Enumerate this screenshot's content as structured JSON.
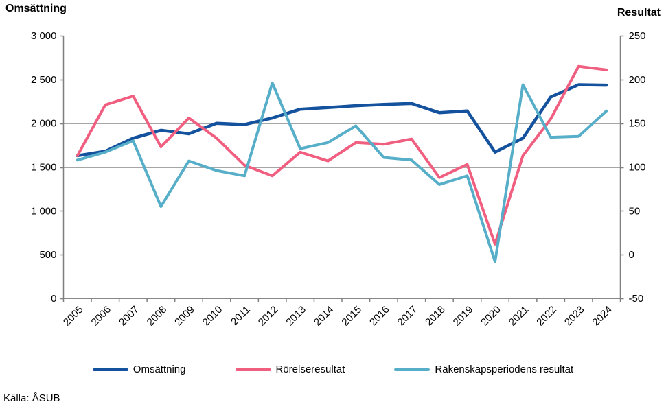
{
  "source": "Källa: ÅSUB",
  "chart_data": {
    "type": "line",
    "categories": [
      "2005",
      "2006",
      "2007",
      "2008",
      "2009",
      "2010",
      "2011",
      "2012",
      "2013",
      "2014",
      "2015",
      "2016",
      "2017",
      "2018",
      "2019",
      "2020",
      "2021",
      "2022",
      "2023",
      "2024"
    ],
    "left_axis": {
      "title": "Omsättning",
      "range": [
        0,
        3000
      ],
      "tick_values": [
        3000,
        2500,
        2000,
        1500,
        1000,
        500,
        0
      ],
      "tick_labels": [
        "3 000",
        "2 500",
        "2 000",
        "1 500",
        "1 000",
        "500",
        "0"
      ]
    },
    "right_axis": {
      "title": "Resultat",
      "range": [
        -50,
        250
      ],
      "tick_values": [
        250,
        200,
        150,
        100,
        50,
        0,
        -50
      ],
      "tick_labels": [
        "250",
        "200",
        "150",
        "100",
        "50",
        "0",
        "-50"
      ]
    },
    "grid": true,
    "legend_position": "bottom",
    "series": [
      {
        "name": "Omsättning",
        "axis": "left",
        "color": "#15529e",
        "stroke_width": 4.5,
        "values": [
          1630,
          1680,
          1830,
          1920,
          1880,
          2000,
          1985,
          2060,
          2160,
          2180,
          2200,
          2215,
          2225,
          2120,
          2140,
          1670,
          1830,
          2300,
          2440,
          2435
        ]
      },
      {
        "name": "Rörelseresultat",
        "axis": "right",
        "color": "#f05f80",
        "stroke_width": 4,
        "values": [
          113,
          171,
          181,
          123,
          156,
          133,
          102,
          90,
          117,
          107,
          128,
          126,
          132,
          88,
          103,
          12,
          113,
          155,
          215,
          211
        ]
      },
      {
        "name": "Räkenskapsperiodens resultat",
        "axis": "right",
        "color": "#56aec8",
        "stroke_width": 4,
        "values": [
          108,
          117,
          130,
          55,
          107,
          96,
          90,
          196,
          121,
          128,
          147,
          111,
          108,
          80,
          90,
          -8,
          194,
          134,
          135,
          164
        ]
      }
    ],
    "colors": {
      "grid": "#a6a6a6",
      "axis": "#7f7f7f",
      "text": "#000000"
    }
  }
}
